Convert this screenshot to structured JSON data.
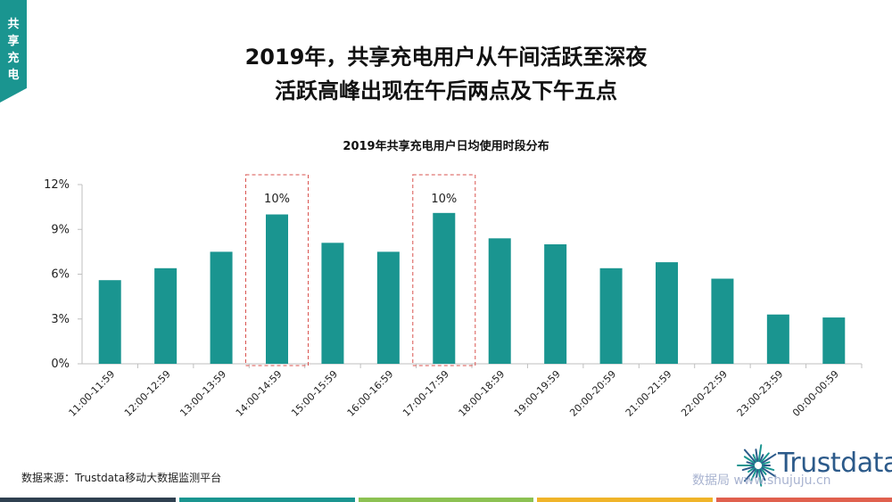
{
  "side_tag": [
    "共",
    "享",
    "充",
    "电"
  ],
  "headline": {
    "line1": "2019年，共享充电用户从午间活跃至深夜",
    "line2": "活跃高峰出现在午后两点及下午五点"
  },
  "source": "数据来源：Trustdata移动大数据监测平台",
  "logo": {
    "text": "Trustdata"
  },
  "watermark": "数据局 www.shujuju.cn",
  "colors": {
    "bar": "#1a9590",
    "accent": "#1a9590",
    "highlight_box": "#d9534f",
    "footer": [
      "#2f4050",
      "#1a9590",
      "#8cc152",
      "#f0b429",
      "#e0604e"
    ]
  },
  "chart_data": {
    "type": "bar",
    "title": "2019年共享充电用户日均使用时段分布",
    "categories": [
      "11:00-11:59",
      "12:00-12:59",
      "13:00-13:59",
      "14:00-14:59",
      "15:00-15:59",
      "16:00-16:59",
      "17:00-17:59",
      "18:00-18:59",
      "19:00-19:59",
      "20:00-20:59",
      "21:00-21:59",
      "22:00-22:59",
      "23:00-23:59",
      "00:00-00:59"
    ],
    "values": [
      5.6,
      6.4,
      7.5,
      10.0,
      8.1,
      7.5,
      10.1,
      8.4,
      8.0,
      6.4,
      6.8,
      5.7,
      3.3,
      3.1
    ],
    "ylim": [
      0,
      12
    ],
    "yticks": [
      0,
      3,
      6,
      9,
      12
    ],
    "ytick_labels": [
      "0%",
      "3%",
      "6%",
      "9%",
      "12%"
    ],
    "annotations": [
      {
        "category_index": 3,
        "label": "10%"
      },
      {
        "category_index": 6,
        "label": "10%"
      }
    ],
    "grid": false,
    "legend": "none"
  }
}
